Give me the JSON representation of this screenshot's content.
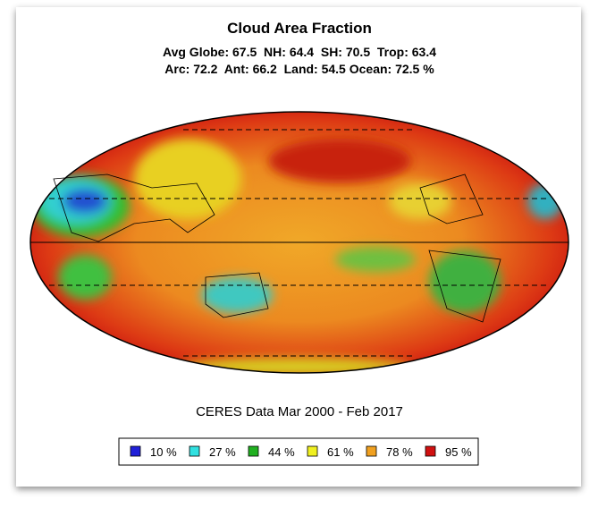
{
  "title": "Cloud Area Fraction",
  "stats": [
    "Avg Globe: 67.5  NH: 64.4  SH: 70.5  Trop: 63.4",
    "Arc: 72.2  Ant: 66.2  Land: 54.5 Ocean: 72.5 %"
  ],
  "caption": "CERES Data Mar 2000 - Feb 2017",
  "legend": [
    {
      "label": "10 %",
      "color": "#2020d8"
    },
    {
      "label": "27 %",
      "color": "#30e0e0"
    },
    {
      "label": "44 %",
      "color": "#20b020"
    },
    {
      "label": "61 %",
      "color": "#f0f020"
    },
    {
      "label": "78 %",
      "color": "#f0a020"
    },
    {
      "label": "95 %",
      "color": "#d01010"
    }
  ]
}
